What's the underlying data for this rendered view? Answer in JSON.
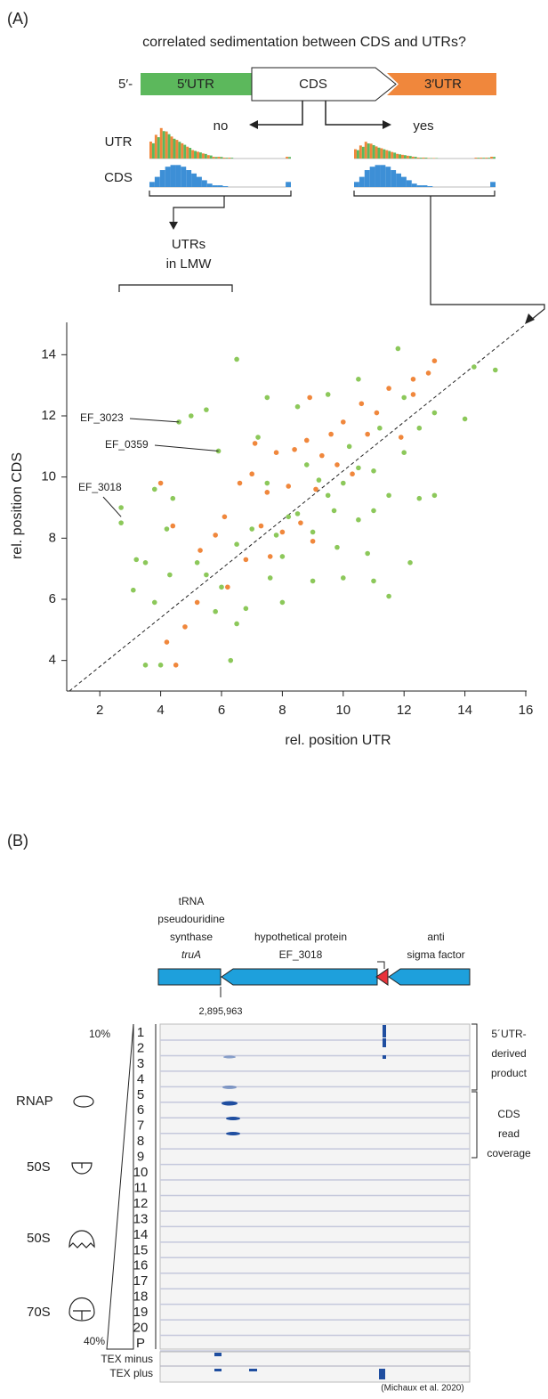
{
  "panel_a": {
    "label": "(A)",
    "question": "correlated sedimentation between CDS and UTRs?",
    "gene": {
      "five_prime": "5′-",
      "utr5": "5′UTR",
      "cds": "CDS",
      "utr3": "3′UTR"
    },
    "branch_no": "no",
    "branch_yes": "yes",
    "row_utr": "UTR",
    "row_cds": "CDS",
    "lmw": [
      "UTRs",
      "in LMW"
    ]
  },
  "chart_data": {
    "type": "scatter",
    "xlabel": "rel. position UTR",
    "ylabel": "rel. position CDS",
    "xlim": [
      1,
      16
    ],
    "ylim": [
      3,
      15
    ],
    "xticks": [
      2,
      4,
      6,
      8,
      10,
      12,
      14,
      16
    ],
    "yticks": [
      4,
      6,
      8,
      10,
      12,
      14
    ],
    "series": [
      {
        "color": "#8cc85a",
        "x": [
          2.7,
          2.7,
          4.6,
          5.9,
          3.2,
          3.5,
          4,
          3.8,
          4.2,
          5,
          5.5,
          6.5,
          6.3,
          6.5,
          4.4,
          3.8,
          5.2,
          5.5,
          6,
          6.5,
          7,
          7.5,
          8,
          8.5,
          9,
          9.5,
          10,
          10.5,
          11,
          11.5,
          12,
          12.5,
          13,
          14,
          15,
          14.3,
          11.8,
          10.5,
          9.5,
          8.5,
          7.5,
          7.2,
          8,
          9,
          10,
          11,
          11.5,
          12.5,
          13,
          12.2,
          10.8,
          9.8,
          7.6,
          6.8,
          4.3,
          5.8,
          8.8,
          10.2,
          11.2,
          12,
          9.2,
          10.5,
          8.2,
          9.7,
          11,
          7.8,
          3.5,
          3.1
        ],
        "y": [
          8.5,
          9,
          11.8,
          10.85,
          7.3,
          3.85,
          3.85,
          5.9,
          8.3,
          12,
          12.2,
          13.85,
          4,
          5.2,
          9.3,
          9.6,
          7.2,
          6.8,
          6.4,
          7.8,
          8.3,
          9.8,
          7.4,
          8.8,
          8.2,
          9.4,
          9.8,
          8.6,
          10.2,
          9.4,
          10.8,
          11.6,
          12.1,
          11.9,
          13.5,
          13.6,
          14.2,
          13.2,
          12.7,
          12.3,
          12.6,
          11.3,
          5.9,
          6.6,
          6.7,
          6.6,
          6.1,
          9.3,
          9.4,
          7.2,
          7.5,
          7.7,
          6.7,
          5.7,
          6.8,
          5.6,
          10.4,
          11,
          11.6,
          12.6,
          9.9,
          10.3,
          8.7,
          8.9,
          8.9,
          8.1,
          7.2,
          6.3
        ]
      },
      {
        "color": "#f0873c",
        "x": [
          4.2,
          4.5,
          4.8,
          5.3,
          5.8,
          6.1,
          6.6,
          7,
          7.5,
          7.8,
          8.2,
          8.4,
          8.8,
          9.1,
          9.3,
          9.6,
          10,
          10.3,
          10.8,
          11.1,
          11.5,
          12.3,
          13,
          12.8,
          7.3,
          7.6,
          8,
          8.6,
          9,
          6.8,
          6.2,
          5.2,
          4.4,
          4,
          9.8,
          10.6,
          11.9,
          12.3,
          8.9,
          7.1
        ],
        "y": [
          4.6,
          3.85,
          5.1,
          7.6,
          8.1,
          8.7,
          9.8,
          10.1,
          9.5,
          10.8,
          9.7,
          10.9,
          11.2,
          9.6,
          10.7,
          11.4,
          11.8,
          10.1,
          11.4,
          12.1,
          12.9,
          12.7,
          13.8,
          13.4,
          8.4,
          7.4,
          8.2,
          8.5,
          7.9,
          7.3,
          6.4,
          5.9,
          8.4,
          9.8,
          10.4,
          12.4,
          11.3,
          13.2,
          12.6,
          11.1
        ]
      }
    ],
    "annotations": [
      {
        "text": "EF_3023",
        "x": 4.6,
        "y": 11.8
      },
      {
        "text": "EF_0359",
        "x": 5.9,
        "y": 10.85
      },
      {
        "text": "EF_3018",
        "x": 2.7,
        "y": 8.7
      }
    ]
  },
  "panel_b": {
    "label": "(B)",
    "genes": {
      "trua": [
        "tRNA",
        "pseudouridine",
        "synthase",
        "truA"
      ],
      "hyp": [
        "hypothetical protein",
        "EF_3018"
      ],
      "anti": [
        "anti",
        "sigma factor"
      ]
    },
    "coordinate": "2,895,963",
    "gradient_top": "10%",
    "gradient_bottom": "40%",
    "lanes": [
      "1",
      "2",
      "3",
      "4",
      "5",
      "6",
      "7",
      "8",
      "9",
      "10",
      "11",
      "12",
      "13",
      "14",
      "15",
      "16",
      "17",
      "18",
      "19",
      "20",
      "P"
    ],
    "complexes": [
      "RNAP",
      "50S",
      "50S",
      "70S"
    ],
    "utr_note": [
      "5´UTR-",
      "derived",
      "product"
    ],
    "cds_note": [
      "CDS",
      "read",
      "coverage"
    ],
    "tex": [
      "TEX minus",
      "TEX plus"
    ],
    "citation": "(Michaux et al. 2020)"
  }
}
